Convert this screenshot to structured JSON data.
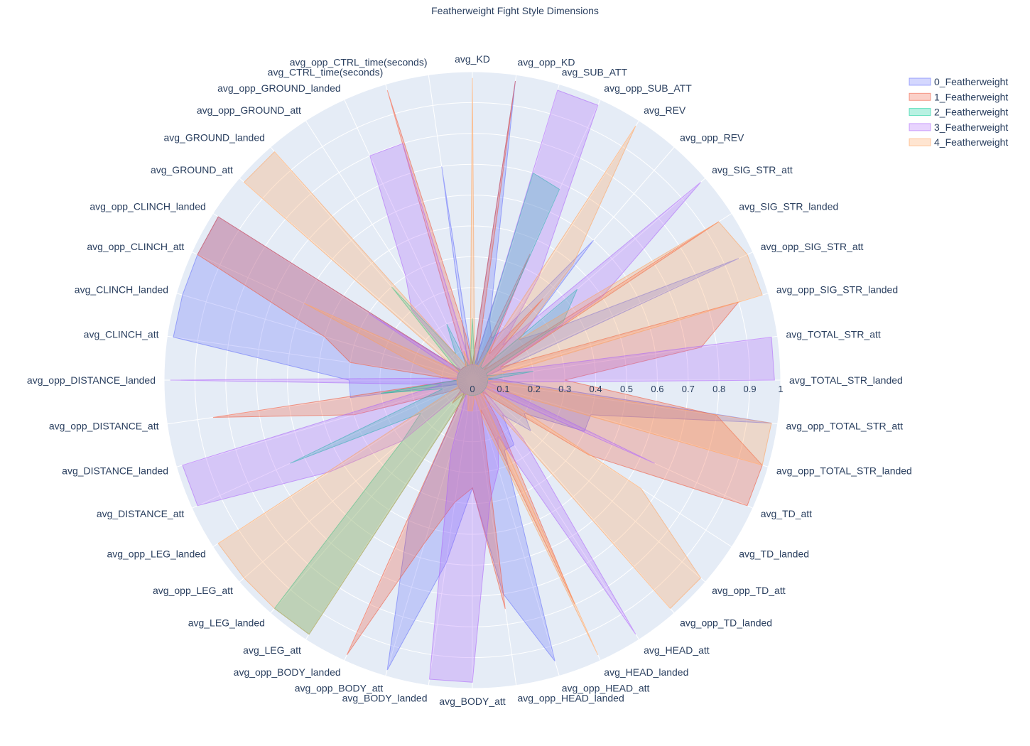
{
  "chart_data": {
    "type": "radar",
    "title": "Featherweight Fight Style Dimensions",
    "radial_range": [
      0,
      1
    ],
    "radial_ticks": [
      "0",
      "0.1",
      "0.2",
      "0.3",
      "0.4",
      "0.5",
      "0.6",
      "0.7",
      "0.8",
      "0.9",
      "1"
    ],
    "grid": true,
    "legend_position": "top-right",
    "categories": [
      "avg_KD",
      "avg_opp_KD",
      "avg_SUB_ATT",
      "avg_opp_SUB_ATT",
      "avg_REV",
      "avg_opp_REV",
      "avg_SIG_STR_att",
      "avg_SIG_STR_landed",
      "avg_opp_SIG_STR_att",
      "avg_opp_SIG_STR_landed",
      "avg_TOTAL_STR_att",
      "avg_TOTAL_STR_landed",
      "avg_opp_TOTAL_STR_att",
      "avg_opp_TOTAL_STR_landed",
      "avg_TD_att",
      "avg_TD_landed",
      "avg_opp_TD_att",
      "avg_opp_TD_landed",
      "avg_HEAD_att",
      "avg_HEAD_landed",
      "avg_opp_HEAD_att",
      "avg_opp_HEAD_landed",
      "avg_BODY_att",
      "avg_BODY_landed",
      "avg_opp_BODY_att",
      "avg_opp_BODY_landed",
      "avg_LEG_att",
      "avg_LEG_landed",
      "avg_opp_LEG_att",
      "avg_opp_LEG_landed",
      "avg_DISTANCE_att",
      "avg_DISTANCE_landed",
      "avg_opp_DISTANCE_att",
      "avg_opp_DISTANCE_landed",
      "avg_CLINCH_att",
      "avg_CLINCH_landed",
      "avg_opp_CLINCH_att",
      "avg_opp_CLINCH_landed",
      "avg_GROUND_att",
      "avg_GROUND_landed",
      "avg_opp_GROUND_att",
      "avg_opp_GROUND_landed",
      "avg_CTRL_time(seconds)",
      "avg_opp_CTRL_time(seconds)"
    ],
    "series": [
      {
        "name": "0_Featherweight",
        "fill": "rgba(99,110,250,0.28)",
        "line": "rgba(99,110,250,0.55)",
        "values": [
          0.05,
          0.98,
          0.2,
          0.15,
          0.2,
          0.6,
          0.2,
          0.3,
          0.95,
          0.05,
          0.05,
          0.1,
          0.98,
          0.4,
          0.4,
          0.2,
          0.25,
          0.15,
          0.25,
          0.25,
          0.95,
          0.7,
          0.35,
          0.6,
          0.98,
          0.5,
          0.05,
          0.05,
          0.05,
          0.05,
          0.05,
          0.05,
          0.4,
          0.4,
          0.98,
          0.98,
          0.98,
          0.98,
          0.05,
          0.05,
          0.05,
          0.05,
          0.05,
          0.7
        ]
      },
      {
        "name": "1_Featherweight",
        "fill": "rgba(239,85,59,0.28)",
        "line": "rgba(239,85,59,0.55)",
        "values": [
          0.05,
          0.98,
          0.05,
          0.45,
          0.1,
          0.35,
          0.05,
          0.95,
          0.1,
          0.9,
          0.75,
          0.3,
          0.8,
          0.98,
          0.98,
          0.45,
          0.1,
          0.05,
          0.15,
          0.8,
          0.1,
          0.75,
          0.35,
          0.4,
          0.55,
          0.98,
          0.05,
          0.1,
          0.05,
          0.05,
          0.1,
          0.4,
          0.85,
          0.05,
          0.4,
          0.5,
          0.98,
          0.98,
          0.05,
          0.05,
          0.05,
          0.05,
          0.98,
          0.15
        ]
      },
      {
        "name": "2_Featherweight",
        "fill": "rgba(0,204,150,0.28)",
        "line": "rgba(0,204,150,0.55)",
        "values": [
          0.2,
          0.05,
          0.7,
          0.68,
          0.05,
          0.05,
          0.45,
          0.35,
          0.05,
          0.05,
          0.2,
          0.05,
          0.05,
          0.05,
          0.05,
          0.05,
          0.05,
          0.05,
          0.05,
          0.05,
          0.05,
          0.05,
          0.05,
          0.05,
          0.05,
          0.05,
          0.98,
          0.98,
          0.3,
          0.2,
          0.65,
          0.1,
          0.3,
          0.05,
          0.05,
          0.05,
          0.05,
          0.05,
          0.1,
          0.4,
          0.1,
          0.2,
          0.05,
          0.05
        ]
      },
      {
        "name": "3_Featherweight",
        "fill": "rgba(171,99,250,0.28)",
        "line": "rgba(171,99,250,0.55)",
        "values": [
          0.05,
          0.05,
          0.98,
          0.98,
          0.4,
          0.15,
          0.98,
          0.5,
          0.1,
          0.1,
          0.98,
          0.98,
          0.05,
          0.1,
          0.65,
          0.05,
          0.05,
          0.25,
          0.98,
          0.2,
          0.3,
          0.4,
          0.98,
          0.98,
          0.25,
          0.05,
          0.05,
          0.05,
          0.3,
          0.55,
          0.98,
          0.98,
          0.1,
          0.98,
          0.05,
          0.05,
          0.05,
          0.4,
          0.05,
          0.3,
          0.4,
          0.8,
          0.8,
          0.05
        ]
      },
      {
        "name": "4_Featherweight",
        "fill": "rgba(255,161,90,0.28)",
        "line": "rgba(255,161,90,0.55)",
        "values": [
          0.98,
          0.05,
          0.05,
          0.05,
          0.98,
          0.5,
          0.2,
          0.95,
          0.98,
          0.98,
          0.05,
          0.05,
          0.98,
          0.98,
          0.05,
          0.65,
          0.98,
          0.98,
          0.05,
          0.98,
          0.15,
          0.05,
          0.1,
          0.1,
          0.05,
          0.05,
          0.98,
          0.98,
          0.98,
          0.98,
          0.05,
          0.05,
          0.05,
          0.05,
          0.1,
          0.2,
          0.6,
          0.05,
          0.98,
          0.98,
          0.1,
          0.05,
          0.1,
          0.05
        ]
      }
    ]
  }
}
